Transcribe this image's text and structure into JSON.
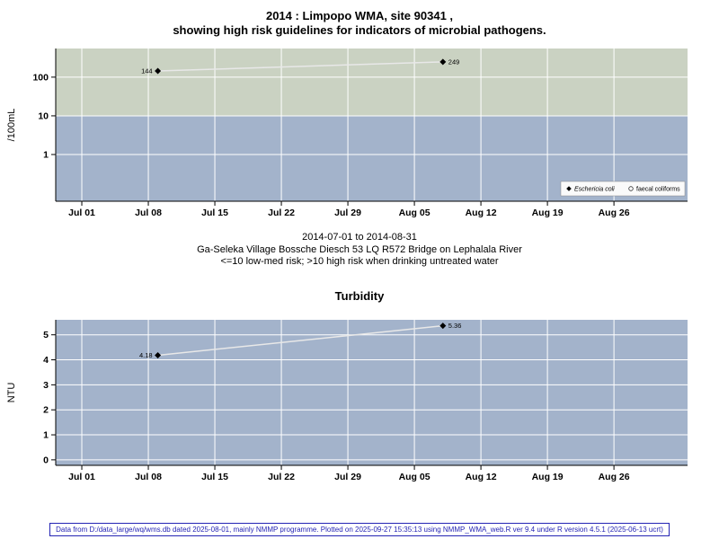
{
  "title": {
    "line1": "2014 : Limpopo WMA, site 90341 ,",
    "line2": "showing high risk guidelines for indicators of microbial pathogens."
  },
  "caption": {
    "line1": "2014-07-01 to 2014-08-31",
    "line2": "Ga-Seleka Village Bossche Diesch 53 LQ R572 Bridge on Lephalala River",
    "line3": "<=10 low-med risk; >10 high risk when drinking untreated water"
  },
  "turbidity_title": "Turbidity",
  "footer": "Data from D:/data_large/wq/wms.db dated 2025-08-01, mainly NMMP programme. Plotted on 2025-09-27 15:35:13 using NMMP_WMA_web.R ver 9.4 under R version 4.5.1 (2025-06-13 ucrt)",
  "colors": {
    "high_risk_band": "#cad2c2",
    "low_risk_band": "#a3b3cb",
    "gridline": "#ffffff",
    "trend_line": "#e8e8e8",
    "marker": "#000000",
    "footer_accent": "#2424b4",
    "legend_background": "#fafafa"
  },
  "chart_data": [
    {
      "id": "microbial",
      "type": "line",
      "title": "2014 : Limpopo WMA, site 90341 , showing high risk guidelines for indicators of microbial pathogens.",
      "ylabel": "/100mL",
      "y_scale": "log",
      "y_domain": [
        0.062,
        550
      ],
      "yticks": [
        1,
        10,
        100
      ],
      "x_domain": [
        "2014-07-01",
        "2014-08-31"
      ],
      "xticks": [
        {
          "date": "2014-07-01",
          "label": "Jul 01"
        },
        {
          "date": "2014-07-08",
          "label": "Jul 08"
        },
        {
          "date": "2014-07-15",
          "label": "Jul 15"
        },
        {
          "date": "2014-07-22",
          "label": "Jul 22"
        },
        {
          "date": "2014-07-29",
          "label": "Jul 29"
        },
        {
          "date": "2014-08-05",
          "label": "Aug 05"
        },
        {
          "date": "2014-08-12",
          "label": "Aug 12"
        },
        {
          "date": "2014-08-19",
          "label": "Aug 19"
        },
        {
          "date": "2014-08-26",
          "label": "Aug 26"
        }
      ],
      "bands": [
        {
          "from": 10,
          "to": null,
          "color": "#cad2c2",
          "meaning": "high risk (>10)"
        },
        {
          "from": null,
          "to": 10,
          "color": "#a3b3cb",
          "meaning": "low-med risk (<=10)"
        }
      ],
      "series": [
        {
          "name": "Eschericia coli",
          "marker": "filled-diamond",
          "points": [
            {
              "date": "2014-07-09",
              "value": 144,
              "label": "144",
              "label_side": "left"
            },
            {
              "date": "2014-08-08",
              "value": 249,
              "label": "249",
              "label_side": "right"
            }
          ]
        },
        {
          "name": "faecal coliforms",
          "marker": "open-circle",
          "points": []
        }
      ],
      "legend": {
        "show": true,
        "position": "bottom-right",
        "items": [
          {
            "label": "Eschericia coli",
            "marker": "filled-diamond",
            "italic": true
          },
          {
            "label": "faecal coliforms",
            "marker": "open-circle",
            "italic": false
          }
        ]
      }
    },
    {
      "id": "turbidity",
      "type": "line",
      "title": "Turbidity",
      "ylabel": "NTU",
      "y_scale": "linear",
      "y_domain": [
        -0.22,
        5.6
      ],
      "yticks": [
        0,
        1,
        2,
        3,
        4,
        5
      ],
      "x_domain": [
        "2014-07-01",
        "2014-08-31"
      ],
      "xticks": [
        {
          "date": "2014-07-01",
          "label": "Jul 01"
        },
        {
          "date": "2014-07-08",
          "label": "Jul 08"
        },
        {
          "date": "2014-07-15",
          "label": "Jul 15"
        },
        {
          "date": "2014-07-22",
          "label": "Jul 22"
        },
        {
          "date": "2014-07-29",
          "label": "Jul 29"
        },
        {
          "date": "2014-08-05",
          "label": "Aug 05"
        },
        {
          "date": "2014-08-12",
          "label": "Aug 12"
        },
        {
          "date": "2014-08-19",
          "label": "Aug 19"
        },
        {
          "date": "2014-08-26",
          "label": "Aug 26"
        }
      ],
      "bands": [
        {
          "from": null,
          "to": null,
          "color": "#a3b3cb",
          "meaning": "panel background"
        }
      ],
      "series": [
        {
          "name": "Turbidity",
          "marker": "filled-diamond",
          "points": [
            {
              "date": "2014-07-09",
              "value": 4.18,
              "label": "4.18",
              "label_side": "left"
            },
            {
              "date": "2014-08-08",
              "value": 5.36,
              "label": "5.36",
              "label_side": "right"
            }
          ]
        }
      ],
      "legend": {
        "show": false,
        "items": []
      }
    }
  ]
}
